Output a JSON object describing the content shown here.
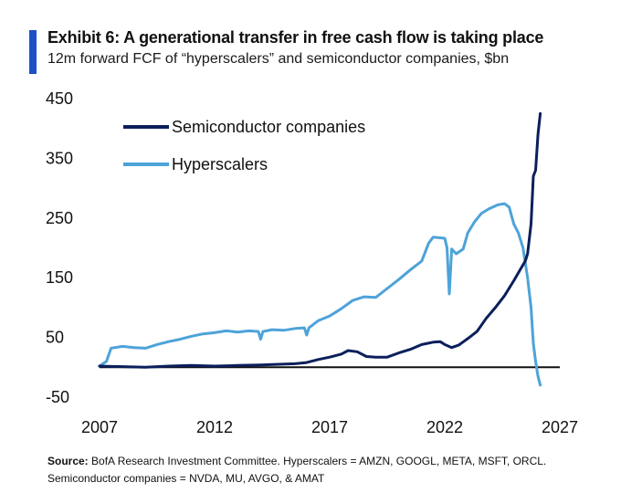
{
  "header": {
    "title": "Exhibit 6: A generational transfer in free cash flow is taking place",
    "subtitle": "12m forward FCF of “hyperscalers” and semiconductor companies, $bn"
  },
  "footer": {
    "source_label": "Source:",
    "source_line1": " BofA Research Investment Committee. Hyperscalers = AMZN, GOOGL, META, MSFT, ORCL.",
    "source_line2": "Semiconductor companies = NVDA, MU, AVGO, & AMAT"
  },
  "colors": {
    "accent_bar": "#1f4fc7",
    "semiconductor": "#0b1f5c",
    "hyperscalers": "#4da3d9",
    "zero_line": "#111111"
  },
  "chart_data": {
    "type": "line",
    "title": "",
    "xlabel": "",
    "ylabel": "",
    "xlim": [
      2007,
      2027
    ],
    "ylim": [
      -50,
      450
    ],
    "xticks": [
      "2007",
      "2012",
      "2017",
      "2022",
      "2027"
    ],
    "yticks": [
      "450",
      "350",
      "250",
      "150",
      "50",
      "-50"
    ],
    "grid": false,
    "legend_position": "top-left",
    "series": [
      {
        "name": "Semiconductor companies",
        "color": "#0b1f5c",
        "points": [
          [
            2007.0,
            2
          ],
          [
            2008.0,
            1
          ],
          [
            2009.0,
            0
          ],
          [
            2010.0,
            2
          ],
          [
            2011.0,
            3
          ],
          [
            2012.0,
            2
          ],
          [
            2013.0,
            3
          ],
          [
            2014.0,
            4
          ],
          [
            2014.8,
            5
          ],
          [
            2015.5,
            6
          ],
          [
            2016.0,
            8
          ],
          [
            2016.5,
            13
          ],
          [
            2017.0,
            17
          ],
          [
            2017.5,
            22
          ],
          [
            2017.8,
            28
          ],
          [
            2018.2,
            26
          ],
          [
            2018.6,
            18
          ],
          [
            2019.0,
            17
          ],
          [
            2019.5,
            17
          ],
          [
            2020.0,
            24
          ],
          [
            2020.5,
            30
          ],
          [
            2021.0,
            38
          ],
          [
            2021.5,
            42
          ],
          [
            2021.8,
            43
          ],
          [
            2022.0,
            38
          ],
          [
            2022.3,
            33
          ],
          [
            2022.6,
            37
          ],
          [
            2023.0,
            48
          ],
          [
            2023.4,
            60
          ],
          [
            2023.8,
            82
          ],
          [
            2024.2,
            100
          ],
          [
            2024.6,
            120
          ],
          [
            2025.0,
            145
          ],
          [
            2025.3,
            165
          ],
          [
            2025.5,
            178
          ],
          [
            2025.6,
            190
          ],
          [
            2025.75,
            240
          ],
          [
            2025.85,
            320
          ],
          [
            2025.95,
            330
          ],
          [
            2026.05,
            390
          ],
          [
            2026.15,
            425
          ]
        ]
      },
      {
        "name": "Hyperscalers",
        "color": "#4da3d9",
        "points": [
          [
            2007.0,
            2
          ],
          [
            2007.3,
            10
          ],
          [
            2007.5,
            32
          ],
          [
            2008.0,
            35
          ],
          [
            2008.5,
            33
          ],
          [
            2009.0,
            32
          ],
          [
            2009.5,
            38
          ],
          [
            2010.0,
            43
          ],
          [
            2010.5,
            47
          ],
          [
            2011.0,
            52
          ],
          [
            2011.5,
            56
          ],
          [
            2012.0,
            58
          ],
          [
            2012.5,
            61
          ],
          [
            2013.0,
            59
          ],
          [
            2013.5,
            61
          ],
          [
            2013.9,
            60
          ],
          [
            2014.0,
            47
          ],
          [
            2014.1,
            60
          ],
          [
            2014.5,
            63
          ],
          [
            2015.0,
            62
          ],
          [
            2015.5,
            65
          ],
          [
            2015.9,
            66
          ],
          [
            2016.0,
            54
          ],
          [
            2016.1,
            66
          ],
          [
            2016.5,
            78
          ],
          [
            2017.0,
            86
          ],
          [
            2017.5,
            98
          ],
          [
            2018.0,
            112
          ],
          [
            2018.5,
            118
          ],
          [
            2019.0,
            117
          ],
          [
            2019.5,
            132
          ],
          [
            2020.0,
            147
          ],
          [
            2020.5,
            163
          ],
          [
            2021.0,
            178
          ],
          [
            2021.3,
            208
          ],
          [
            2021.5,
            218
          ],
          [
            2022.0,
            216
          ],
          [
            2022.1,
            200
          ],
          [
            2022.2,
            123
          ],
          [
            2022.3,
            198
          ],
          [
            2022.5,
            190
          ],
          [
            2022.8,
            198
          ],
          [
            2023.0,
            225
          ],
          [
            2023.3,
            244
          ],
          [
            2023.6,
            258
          ],
          [
            2023.9,
            265
          ],
          [
            2024.3,
            272
          ],
          [
            2024.6,
            274
          ],
          [
            2024.8,
            268
          ],
          [
            2025.0,
            240
          ],
          [
            2025.2,
            225
          ],
          [
            2025.4,
            200
          ],
          [
            2025.6,
            150
          ],
          [
            2025.75,
            100
          ],
          [
            2025.85,
            40
          ],
          [
            2025.95,
            10
          ],
          [
            2026.05,
            -15
          ],
          [
            2026.15,
            -30
          ]
        ]
      }
    ]
  }
}
